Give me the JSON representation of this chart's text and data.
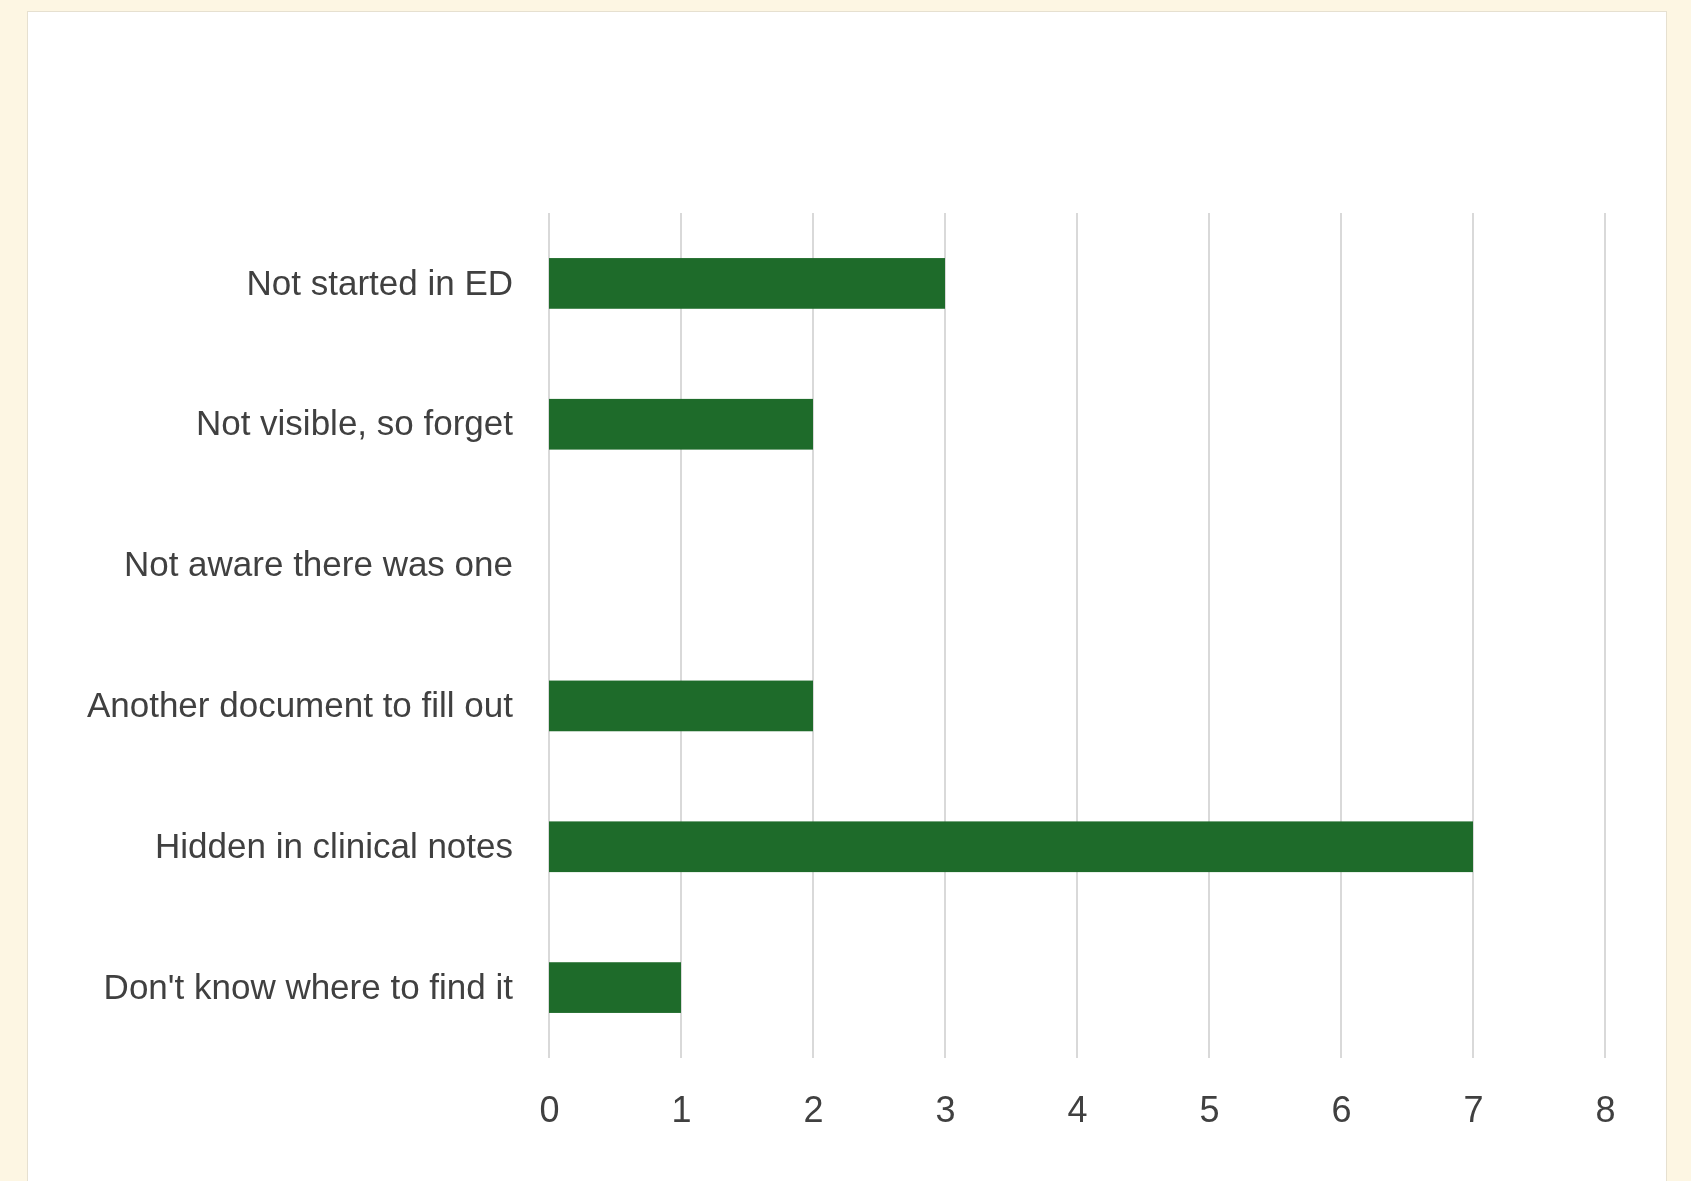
{
  "chart_data": {
    "type": "bar",
    "orientation": "horizontal",
    "categories": [
      "Not started in ED",
      "Not visible, so forget",
      "Not aware there was one",
      "Another document to fill out",
      "Hidden in clinical notes",
      "Don't know where to find it"
    ],
    "values": [
      3,
      2,
      0,
      2,
      7,
      1
    ],
    "color": "#1e6b2a",
    "xlim": [
      0,
      8
    ],
    "xticks": [
      0,
      1,
      2,
      3,
      4,
      5,
      6,
      7,
      8
    ],
    "grid": "x"
  }
}
